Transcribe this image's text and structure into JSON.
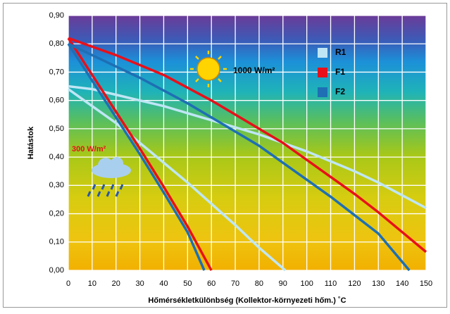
{
  "chart_data": {
    "type": "line",
    "ylabel": "Hatástok",
    "xlabel": "Hőmérsékletkülönbség (Kollektor-környezeti hőm.) ˚C",
    "xlim": [
      0,
      150
    ],
    "xticks": [
      0,
      10,
      20,
      30,
      40,
      50,
      60,
      70,
      80,
      90,
      100,
      110,
      120,
      130,
      140,
      150
    ],
    "ylim": [
      0,
      0.9
    ],
    "yticks": [
      {
        "value": 0,
        "label": "0,00"
      },
      {
        "value": 0.1,
        "label": "0,10"
      },
      {
        "value": 0.2,
        "label": "0,20"
      },
      {
        "value": 0.3,
        "label": "0,30"
      },
      {
        "value": 0.4,
        "label": "0,40"
      },
      {
        "value": 0.5,
        "label": "0,50"
      },
      {
        "value": 0.6,
        "label": "0,60"
      },
      {
        "value": 0.7,
        "label": "0,70"
      },
      {
        "value": 0.8,
        "label": "0,80"
      },
      {
        "value": 0.9,
        "label": "0,90"
      }
    ],
    "grid": true,
    "annotations": [
      "1000 W/m²",
      "300 W/m²"
    ],
    "series": [
      {
        "name": "R1",
        "color": "#bfe6f5",
        "curves": [
          {
            "x": [
              0,
              10,
              20,
              30,
              40,
              50,
              60,
              70,
              80,
              90,
              100,
              110,
              120,
              130,
              140,
              150
            ],
            "values": [
              0.65,
              0.64,
              0.62,
              0.6,
              0.58,
              0.555,
              0.53,
              0.505,
              0.48,
              0.45,
              0.42,
              0.385,
              0.35,
              0.31,
              0.265,
              0.22
            ]
          },
          {
            "x": [
              0,
              10,
              20,
              30,
              40,
              50,
              60,
              70,
              80,
              91
            ],
            "values": [
              0.64,
              0.58,
              0.52,
              0.45,
              0.38,
              0.31,
              0.235,
              0.16,
              0.08,
              0
            ]
          }
        ]
      },
      {
        "name": "F1",
        "color": "#e8101a",
        "curves": [
          {
            "x": [
              0,
              10,
              20,
              30,
              40,
              50,
              60,
              70,
              80,
              90,
              100,
              110,
              120,
              130,
              140,
              150
            ],
            "values": [
              0.82,
              0.79,
              0.76,
              0.725,
              0.69,
              0.645,
              0.6,
              0.55,
              0.5,
              0.45,
              0.39,
              0.33,
              0.27,
              0.205,
              0.135,
              0.065
            ]
          },
          {
            "x": [
              0,
              10,
              20,
              30,
              40,
              50,
              60
            ],
            "values": [
              0.82,
              0.69,
              0.56,
              0.43,
              0.295,
              0.155,
              0
            ]
          }
        ]
      },
      {
        "name": "F2",
        "color": "#1e6fb4",
        "curves": [
          {
            "x": [
              0,
              10,
              20,
              30,
              40,
              50,
              60,
              70,
              80,
              90,
              100,
              110,
              120,
              130,
              143
            ],
            "values": [
              0.8,
              0.76,
              0.72,
              0.68,
              0.635,
              0.59,
              0.54,
              0.49,
              0.44,
              0.38,
              0.32,
              0.26,
              0.195,
              0.13,
              0
            ]
          },
          {
            "x": [
              0,
              10,
              20,
              30,
              40,
              50,
              57
            ],
            "values": [
              0.8,
              0.67,
              0.54,
              0.41,
              0.275,
              0.135,
              0
            ]
          }
        ]
      }
    ]
  }
}
